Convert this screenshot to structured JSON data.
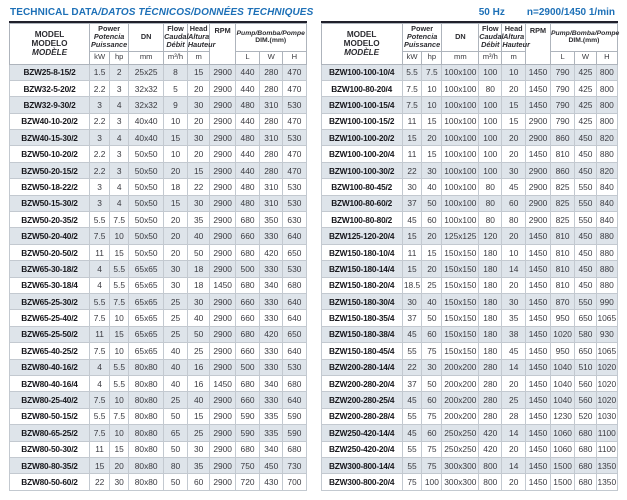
{
  "header": {
    "title_plain": "TECHNICAL DATA",
    "title_italic": "/DATOS TÉCNICOS/DONNÉES TECHNIQUES",
    "frequency": "50 Hz",
    "speed": "n=2900/1450 1/min"
  },
  "colors": {
    "accent_blue": "#1d70b7",
    "rule_dark": "#20202b",
    "row_shade": "#dee4ea"
  },
  "columns": {
    "model_lines": [
      "MODEL",
      "MODELO",
      "MODÈLE"
    ],
    "power_lines": [
      "Power",
      "Potencia",
      "Puissance"
    ],
    "power_unit_kw": "kW",
    "power_unit_hp": "hp",
    "dn_label": "DN",
    "dn_unit": "mm",
    "flow_lines": [
      "Flow",
      "Caudal",
      "Débit"
    ],
    "flow_unit": "m³/h",
    "head_lines": [
      "Head",
      "Altura",
      "Hauteur"
    ],
    "head_unit": "m",
    "rpm_label": "RPM",
    "dim_lines": [
      "Pump/Bomba/Pompe",
      "DIM.(mm)"
    ],
    "dim_unit_l": "L",
    "dim_unit_w": "W",
    "dim_unit_h": "H"
  },
  "tables": {
    "left": {
      "rows": [
        [
          "BZW25-8-15/2",
          "1.5",
          "2",
          "25x25",
          "8",
          "15",
          "2900",
          "440",
          "280",
          "470"
        ],
        [
          "BZW32-5-20/2",
          "2.2",
          "3",
          "32x32",
          "5",
          "20",
          "2900",
          "440",
          "280",
          "470"
        ],
        [
          "BZW32-9-30/2",
          "3",
          "4",
          "32x32",
          "9",
          "30",
          "2900",
          "480",
          "310",
          "530"
        ],
        [
          "BZW40-10-20/2",
          "2.2",
          "3",
          "40x40",
          "10",
          "20",
          "2900",
          "440",
          "280",
          "470"
        ],
        [
          "BZW40-15-30/2",
          "3",
          "4",
          "40x40",
          "15",
          "30",
          "2900",
          "480",
          "310",
          "530"
        ],
        [
          "BZW50-10-20/2",
          "2.2",
          "3",
          "50x50",
          "10",
          "20",
          "2900",
          "440",
          "280",
          "470"
        ],
        [
          "BZW50-20-15/2",
          "2.2",
          "3",
          "50x50",
          "20",
          "15",
          "2900",
          "440",
          "280",
          "470"
        ],
        [
          "BZW50-18-22/2",
          "3",
          "4",
          "50x50",
          "18",
          "22",
          "2900",
          "480",
          "310",
          "530"
        ],
        [
          "BZW50-15-30/2",
          "3",
          "4",
          "50x50",
          "15",
          "30",
          "2900",
          "480",
          "310",
          "530"
        ],
        [
          "BZW50-20-35/2",
          "5.5",
          "7.5",
          "50x50",
          "20",
          "35",
          "2900",
          "680",
          "350",
          "630"
        ],
        [
          "BZW50-20-40/2",
          "7.5",
          "10",
          "50x50",
          "20",
          "40",
          "2900",
          "660",
          "330",
          "640"
        ],
        [
          "BZW50-20-50/2",
          "11",
          "15",
          "50x50",
          "20",
          "50",
          "2900",
          "680",
          "420",
          "650"
        ],
        [
          "BZW65-30-18/2",
          "4",
          "5.5",
          "65x65",
          "30",
          "18",
          "2900",
          "500",
          "330",
          "530"
        ],
        [
          "BZW65-30-18/4",
          "4",
          "5.5",
          "65x65",
          "30",
          "18",
          "1450",
          "680",
          "340",
          "680"
        ],
        [
          "BZW65-25-30/2",
          "5.5",
          "7.5",
          "65x65",
          "25",
          "30",
          "2900",
          "660",
          "330",
          "640"
        ],
        [
          "BZW65-25-40/2",
          "7.5",
          "10",
          "65x65",
          "25",
          "40",
          "2900",
          "660",
          "330",
          "640"
        ],
        [
          "BZW65-25-50/2",
          "11",
          "15",
          "65x65",
          "25",
          "50",
          "2900",
          "680",
          "420",
          "650"
        ],
        [
          "BZW65-40-25/2",
          "7.5",
          "10",
          "65x65",
          "40",
          "25",
          "2900",
          "660",
          "330",
          "640"
        ],
        [
          "BZW80-40-16/2",
          "4",
          "5.5",
          "80x80",
          "40",
          "16",
          "2900",
          "500",
          "330",
          "530"
        ],
        [
          "BZW80-40-16/4",
          "4",
          "5.5",
          "80x80",
          "40",
          "16",
          "1450",
          "680",
          "340",
          "680"
        ],
        [
          "BZW80-25-40/2",
          "7.5",
          "10",
          "80x80",
          "25",
          "40",
          "2900",
          "660",
          "330",
          "640"
        ],
        [
          "BZW80-50-15/2",
          "5.5",
          "7.5",
          "80x80",
          "50",
          "15",
          "2900",
          "590",
          "335",
          "590"
        ],
        [
          "BZW80-65-25/2",
          "7.5",
          "10",
          "80x80",
          "65",
          "25",
          "2900",
          "590",
          "335",
          "590"
        ],
        [
          "BZW80-50-30/2",
          "11",
          "15",
          "80x80",
          "50",
          "30",
          "2900",
          "680",
          "340",
          "680"
        ],
        [
          "BZW80-80-35/2",
          "15",
          "20",
          "80x80",
          "80",
          "35",
          "2900",
          "750",
          "450",
          "730"
        ],
        [
          "BZW80-50-60/2",
          "22",
          "30",
          "80x80",
          "50",
          "60",
          "2900",
          "720",
          "430",
          "700"
        ]
      ]
    },
    "right": {
      "rows": [
        [
          "BZW100-100-10/4",
          "5.5",
          "7.5",
          "100x100",
          "100",
          "10",
          "1450",
          "790",
          "425",
          "800"
        ],
        [
          "BZW100-80-20/4",
          "7.5",
          "10",
          "100x100",
          "80",
          "20",
          "1450",
          "790",
          "425",
          "800"
        ],
        [
          "BZW100-100-15/4",
          "7.5",
          "10",
          "100x100",
          "100",
          "15",
          "1450",
          "790",
          "425",
          "800"
        ],
        [
          "BZW100-100-15/2",
          "11",
          "15",
          "100x100",
          "100",
          "15",
          "2900",
          "790",
          "425",
          "800"
        ],
        [
          "BZW100-100-20/2",
          "15",
          "20",
          "100x100",
          "100",
          "20",
          "2900",
          "860",
          "450",
          "820"
        ],
        [
          "BZW100-100-20/4",
          "11",
          "15",
          "100x100",
          "100",
          "20",
          "1450",
          "810",
          "450",
          "880"
        ],
        [
          "BZW100-100-30/2",
          "22",
          "30",
          "100x100",
          "100",
          "30",
          "2900",
          "860",
          "450",
          "820"
        ],
        [
          "BZW100-80-45/2",
          "30",
          "40",
          "100x100",
          "80",
          "45",
          "2900",
          "825",
          "550",
          "840"
        ],
        [
          "BZW100-80-60/2",
          "37",
          "50",
          "100x100",
          "80",
          "60",
          "2900",
          "825",
          "550",
          "840"
        ],
        [
          "BZW100-80-80/2",
          "45",
          "60",
          "100x100",
          "80",
          "80",
          "2900",
          "825",
          "550",
          "840"
        ],
        [
          "BZW125-120-20/4",
          "15",
          "20",
          "125x125",
          "120",
          "20",
          "1450",
          "810",
          "450",
          "880"
        ],
        [
          "BZW150-180-10/4",
          "11",
          "15",
          "150x150",
          "180",
          "10",
          "1450",
          "810",
          "450",
          "880"
        ],
        [
          "BZW150-180-14/4",
          "15",
          "20",
          "150x150",
          "180",
          "14",
          "1450",
          "810",
          "450",
          "880"
        ],
        [
          "BZW150-180-20/4",
          "18.5",
          "25",
          "150x150",
          "180",
          "20",
          "1450",
          "810",
          "450",
          "880"
        ],
        [
          "BZW150-180-30/4",
          "30",
          "40",
          "150x150",
          "180",
          "30",
          "1450",
          "870",
          "550",
          "990"
        ],
        [
          "BZW150-180-35/4",
          "37",
          "50",
          "150x150",
          "180",
          "35",
          "1450",
          "950",
          "650",
          "1065"
        ],
        [
          "BZW150-180-38/4",
          "45",
          "60",
          "150x150",
          "180",
          "38",
          "1450",
          "1020",
          "580",
          "930"
        ],
        [
          "BZW150-180-45/4",
          "55",
          "75",
          "150x150",
          "180",
          "45",
          "1450",
          "950",
          "650",
          "1065"
        ],
        [
          "BZW200-280-14/4",
          "22",
          "30",
          "200x200",
          "280",
          "14",
          "1450",
          "1040",
          "510",
          "1020"
        ],
        [
          "BZW200-280-20/4",
          "37",
          "50",
          "200x200",
          "280",
          "20",
          "1450",
          "1040",
          "560",
          "1020"
        ],
        [
          "BZW200-280-25/4",
          "45",
          "60",
          "200x200",
          "280",
          "25",
          "1450",
          "1040",
          "560",
          "1020"
        ],
        [
          "BZW200-280-28/4",
          "55",
          "75",
          "200x200",
          "280",
          "28",
          "1450",
          "1230",
          "520",
          "1030"
        ],
        [
          "BZW250-420-14/4",
          "45",
          "60",
          "250x250",
          "420",
          "14",
          "1450",
          "1060",
          "680",
          "1100"
        ],
        [
          "BZW250-420-20/4",
          "55",
          "75",
          "250x250",
          "420",
          "20",
          "1450",
          "1060",
          "680",
          "1100"
        ],
        [
          "BZW300-800-14/4",
          "55",
          "75",
          "300x300",
          "800",
          "14",
          "1450",
          "1500",
          "680",
          "1350"
        ],
        [
          "BZW300-800-20/4",
          "75",
          "100",
          "300x300",
          "800",
          "20",
          "1450",
          "1500",
          "680",
          "1350"
        ]
      ]
    }
  }
}
